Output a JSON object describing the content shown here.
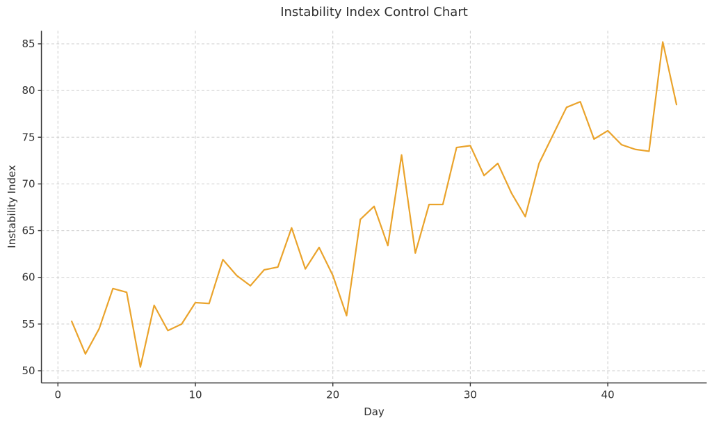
{
  "chart_data": {
    "type": "line",
    "title": "Instability Index Control Chart",
    "xlabel": "Day",
    "ylabel": "Instability Index",
    "legend": "none",
    "grid": "dashed-both-axes",
    "x": [
      1,
      2,
      3,
      4,
      5,
      6,
      7,
      8,
      9,
      10,
      11,
      12,
      13,
      14,
      15,
      16,
      17,
      18,
      19,
      20,
      21,
      22,
      23,
      24,
      25,
      26,
      27,
      28,
      29,
      30,
      31,
      32,
      33,
      34,
      35,
      36,
      37,
      38,
      39,
      40,
      41,
      42,
      43,
      44,
      45
    ],
    "values": [
      55.3,
      51.8,
      54.5,
      58.8,
      58.4,
      50.4,
      57.0,
      54.3,
      55.0,
      57.3,
      57.2,
      61.9,
      60.2,
      59.1,
      60.8,
      61.1,
      65.3,
      60.9,
      63.2,
      60.2,
      55.9,
      66.2,
      67.6,
      63.4,
      73.1,
      62.6,
      67.8,
      67.8,
      73.9,
      74.1,
      70.9,
      72.2,
      69.0,
      66.5,
      72.2,
      75.2,
      78.2,
      78.8,
      74.8,
      75.7,
      74.2,
      73.7,
      73.5,
      85.2,
      78.5
    ],
    "xticks": [
      0,
      10,
      20,
      30,
      40
    ],
    "yticks": [
      50,
      55,
      60,
      65,
      70,
      75,
      80,
      85
    ],
    "xlim": [
      -1.2,
      47.2
    ],
    "ylim": [
      48.7,
      86.4
    ],
    "colors": {
      "line": "#EAA32B",
      "grid": "#cccccc",
      "axis": "#333333",
      "text": "#2e2e2e",
      "background": "#ffffff"
    }
  }
}
